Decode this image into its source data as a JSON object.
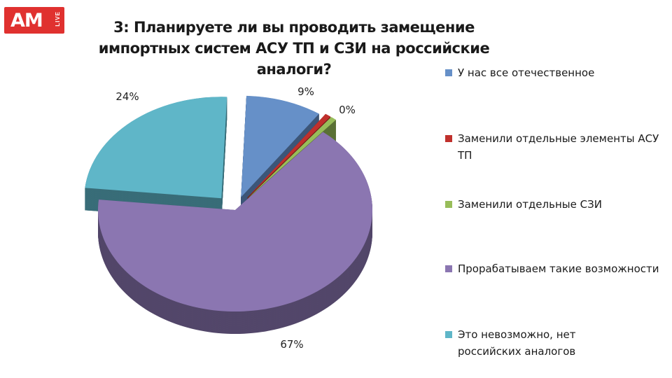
{
  "logo": {
    "main": "AM",
    "sub": "LIVE"
  },
  "chart_data": {
    "type": "pie",
    "title": "3: Планируете ли вы проводить замещение импортных систем АСУ ТП и СЗИ на российские аналоги?",
    "legend_position": "right",
    "slices": [
      {
        "name": "У нас все отечественное",
        "value": 9,
        "label": "9%",
        "color": "#6690c8"
      },
      {
        "name": "Заменили отдельные элементы АСУ ТП",
        "value": 0,
        "label": "",
        "color": "#c0302c"
      },
      {
        "name": "Заменили отдельные СЗИ",
        "value": 0,
        "label": "0%",
        "color": "#98bd5a"
      },
      {
        "name": "Прорабатываем такие возможности",
        "value": 67,
        "label": "67%",
        "color": "#8b76b1"
      },
      {
        "name": "Это невозможно, нет российских аналогов",
        "value": 24,
        "label": "24%",
        "color": "#5fb6c8"
      }
    ]
  }
}
